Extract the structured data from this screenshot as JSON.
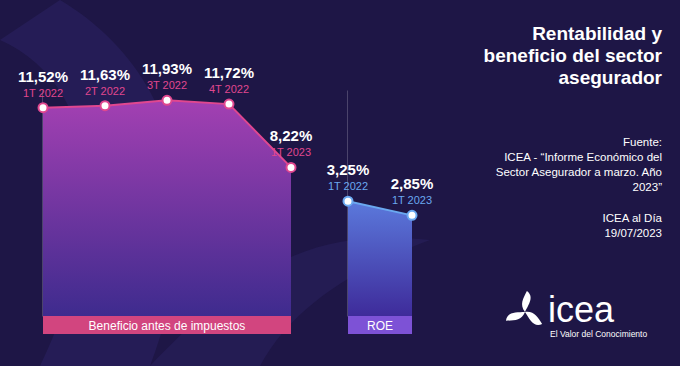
{
  "title": [
    "Rentabilidad y",
    "beneficio del sector",
    "asegurador"
  ],
  "source": [
    "Fuente:",
    "ICEA - “Informe Económico del",
    "Sector Asegurador a marzo. Año",
    "2023”"
  ],
  "publication": [
    "ICEA al Día",
    "19/07/2023"
  ],
  "logo": "icea",
  "tagline": "El Valor del Conocimiento",
  "chart_data": [
    {
      "type": "area",
      "title": "Beneficio antes de impuestos",
      "categories": [
        "1T 2022",
        "2T 2022",
        "3T 2022",
        "4T 2022",
        "1T 2023"
      ],
      "values": [
        11.52,
        11.63,
        11.93,
        11.72,
        8.22
      ],
      "value_labels": [
        "11,52%",
        "11,63%",
        "11,93%",
        "11,72%",
        "8,22%"
      ],
      "color": "#e0478f",
      "marker": "circle",
      "data_labels": true,
      "tick_labels": "x",
      "ylim": [
        0,
        12.5
      ]
    },
    {
      "type": "area",
      "title": "ROE",
      "categories": [
        "1T 2022",
        "1T 2023"
      ],
      "values": [
        3.25,
        2.85
      ],
      "value_labels": [
        "3,25%",
        "2,85%"
      ],
      "color": "#6aa8f0",
      "marker": "circle",
      "data_labels": true,
      "tick_labels": "x",
      "ylim": [
        0,
        6.4
      ]
    }
  ]
}
